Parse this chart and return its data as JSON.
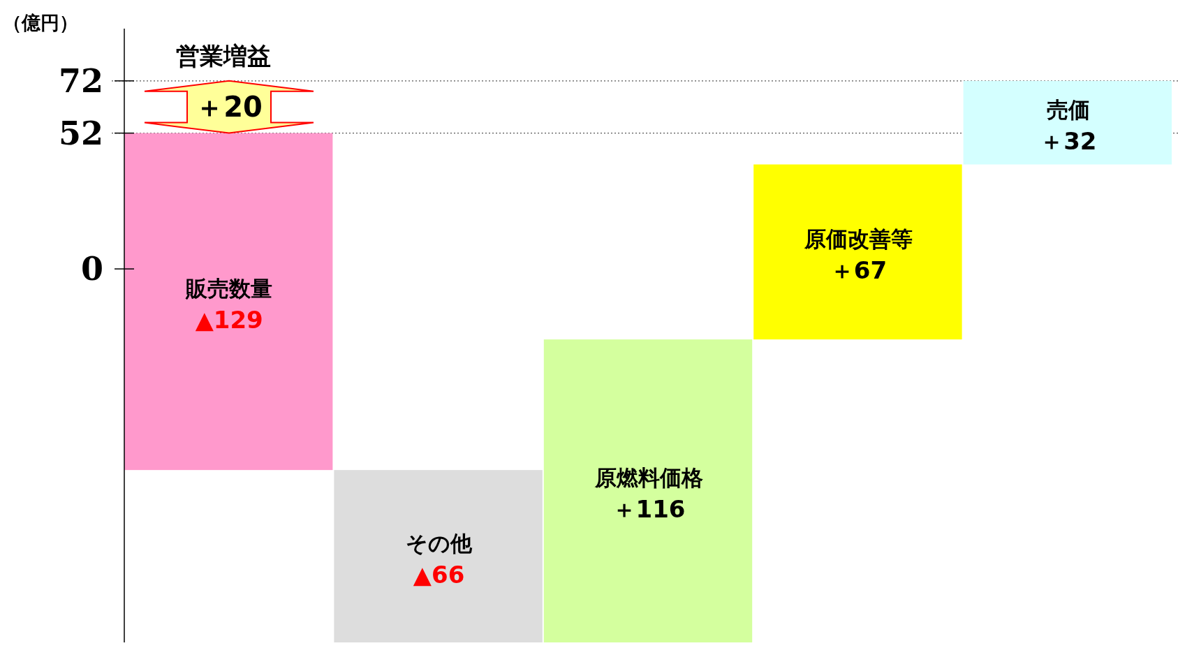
{
  "chart_data": {
    "type": "bar",
    "ylabel": "（億円）",
    "categories": [
      "販売数量",
      "その他",
      "原燃料価格",
      "原価改善等",
      "売価"
    ],
    "base": [
      52,
      -77,
      -143,
      -27,
      40
    ],
    "values": [
      -129,
      -66,
      116,
      67,
      32
    ],
    "colors": [
      "#ff99cc",
      "#dddddd",
      "#d4ff9e",
      "#ffff00",
      "#d4ffff"
    ],
    "value_labels": [
      "▲129",
      "▲66",
      "＋116",
      "＋67",
      "＋32"
    ],
    "ylim": [
      -143,
      92
    ],
    "yticks": [
      0,
      52,
      72
    ],
    "ref_lines": [
      {
        "axis": "y",
        "value": 72,
        "line_style": "dotted",
        "color": "#555555"
      },
      {
        "axis": "y",
        "value": 52,
        "line_style": "dotted",
        "color": "#555555"
      }
    ],
    "annotations": [
      "営業増益",
      "＋20"
    ]
  }
}
